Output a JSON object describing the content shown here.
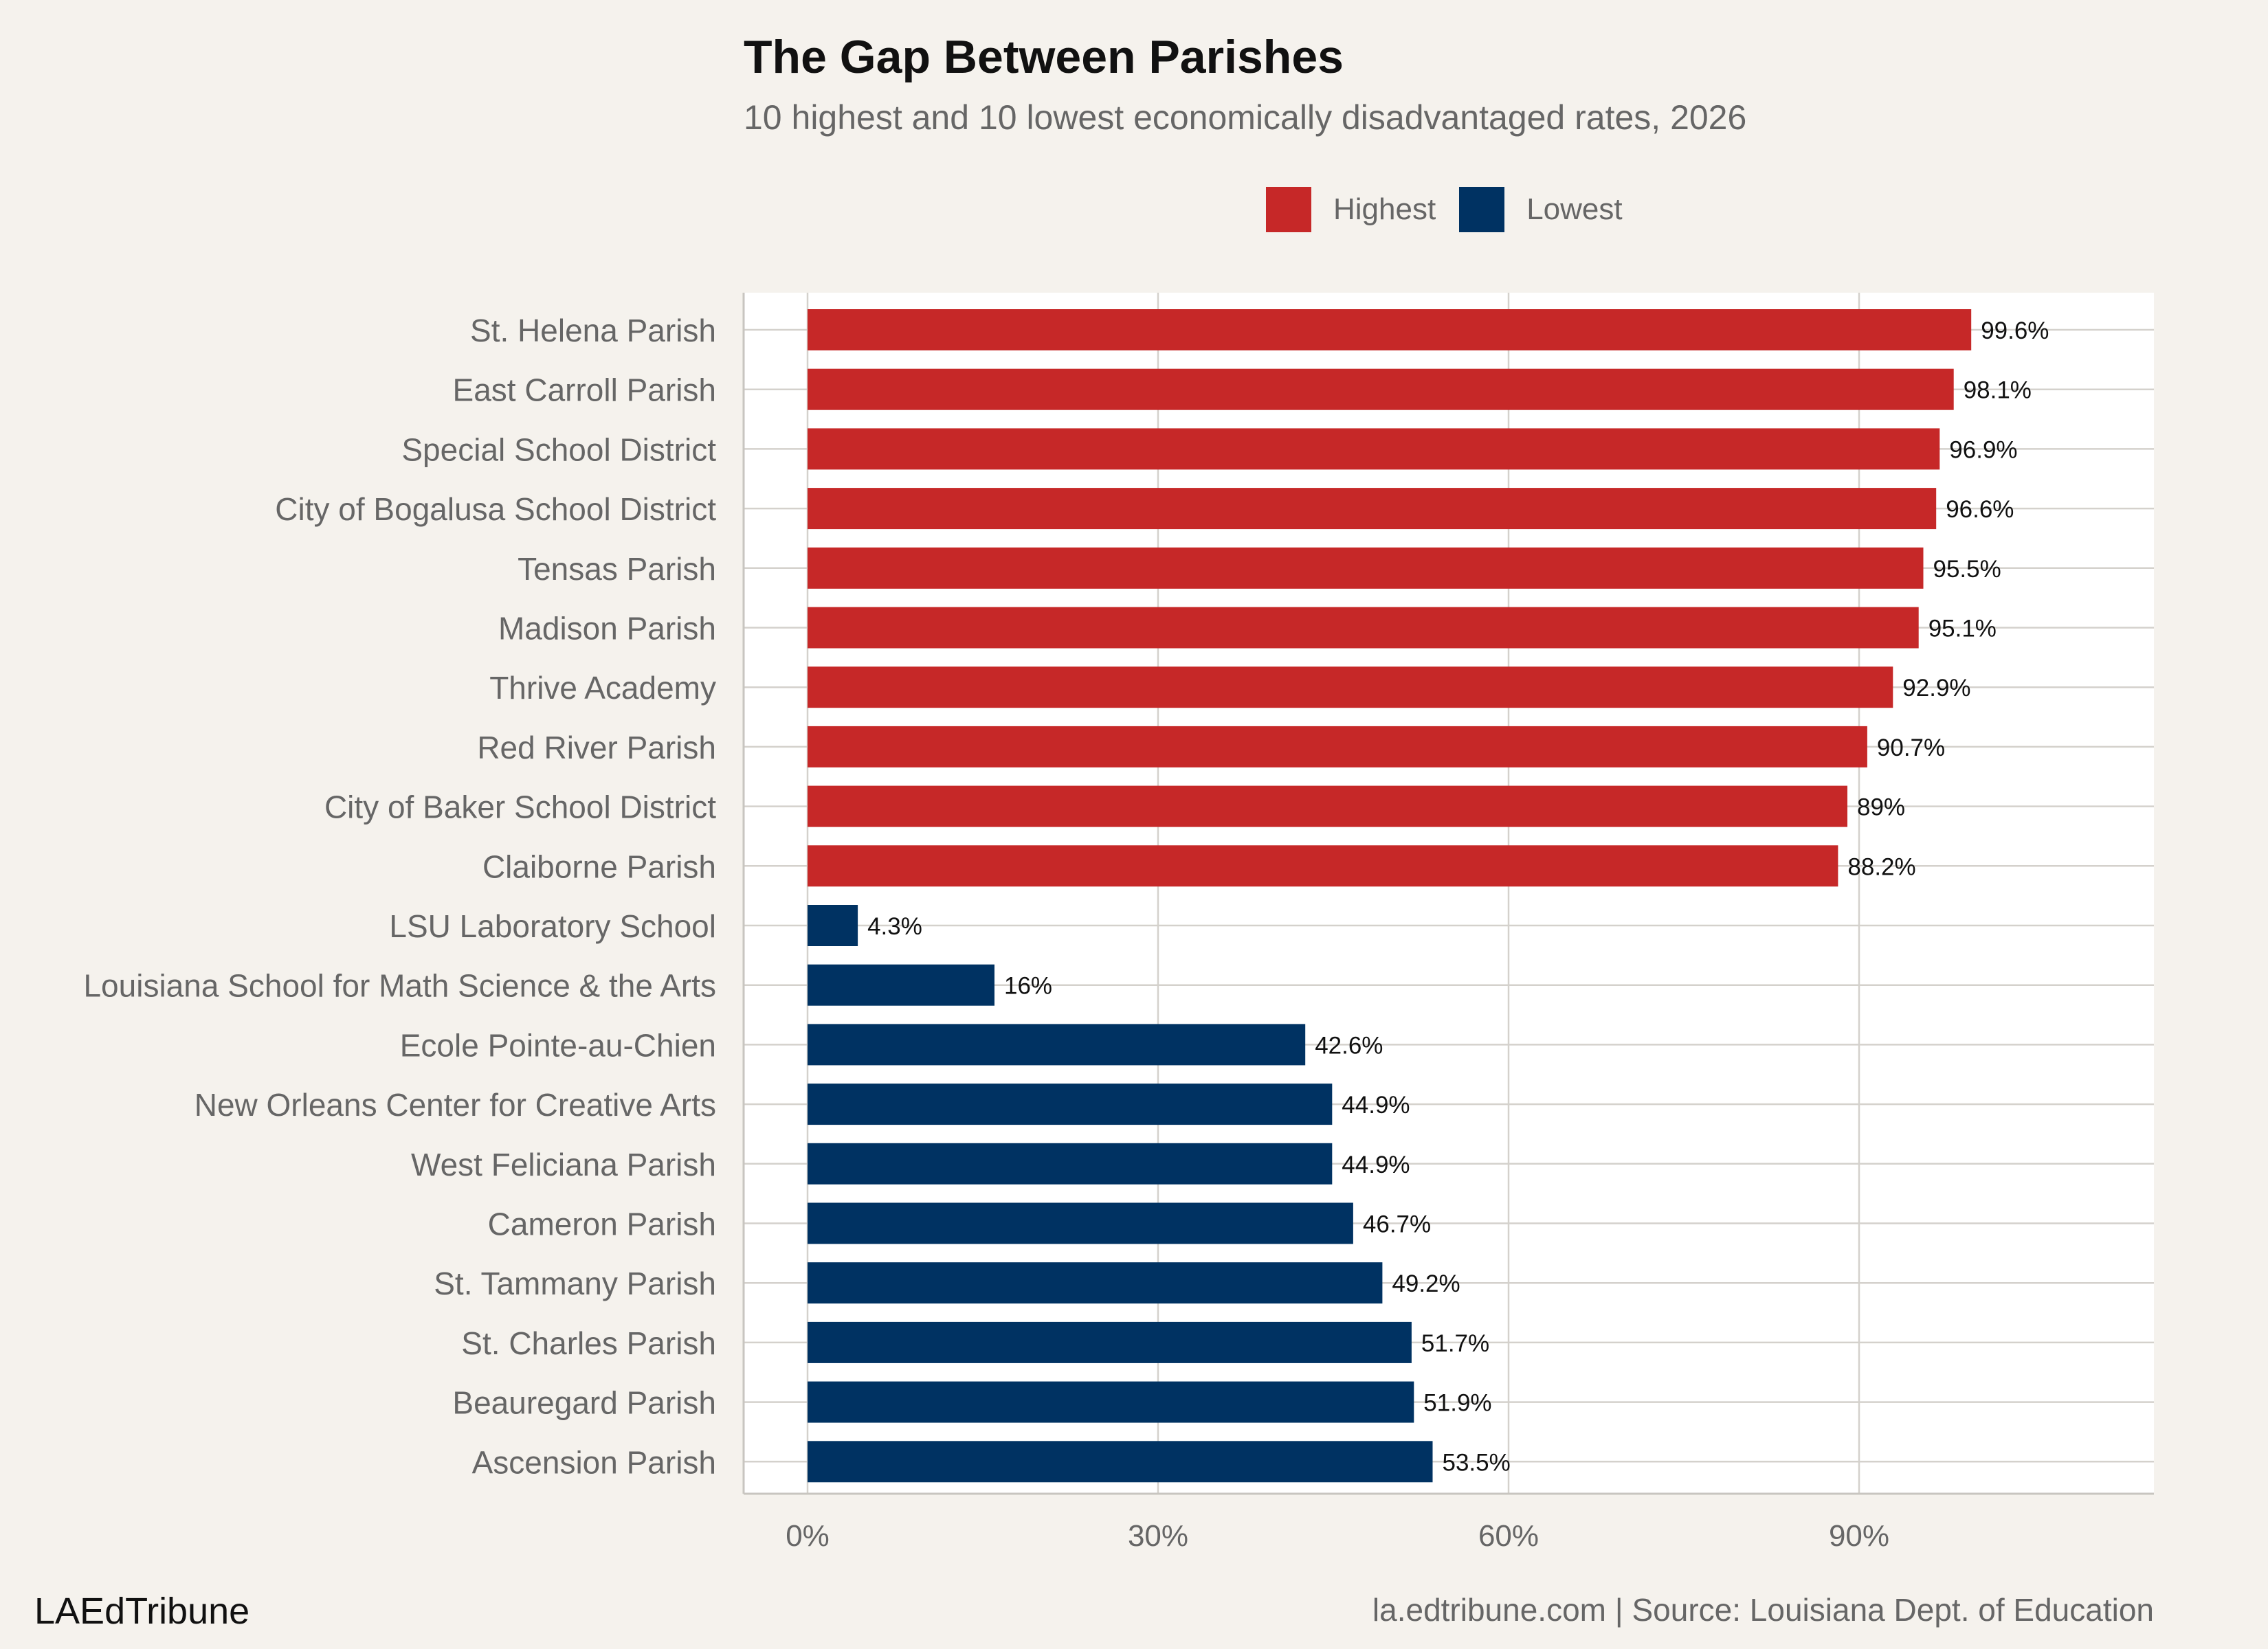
{
  "header": {
    "title": "The Gap Between Parishes",
    "subtitle": "10 highest and 10 lowest economically disadvantaged rates, 2026"
  },
  "footer": {
    "brand": "LAEdTribune",
    "source": "la.edtribune.com | Source: Louisiana Dept. of Education"
  },
  "colors": {
    "highest": "#c62828",
    "lowest": "#003262",
    "background": "#f5f2ed",
    "panel": "#ffffff",
    "grid": "#d4d1cc"
  },
  "chart_data": {
    "type": "bar",
    "orientation": "horizontal",
    "title": "The Gap Between Parishes",
    "subtitle": "10 highest and 10 lowest economically disadvantaged rates, 2026",
    "xlim": [
      0,
      115
    ],
    "x_ticks": [
      0,
      30,
      60,
      90
    ],
    "x_tick_labels": [
      "0%",
      "30%",
      "60%",
      "90%"
    ],
    "grid": true,
    "legend": {
      "placement": "top",
      "entries": [
        {
          "name": "Highest",
          "color": "#c62828"
        },
        {
          "name": "Lowest",
          "color": "#003262"
        }
      ]
    },
    "bars": [
      {
        "category": "St. Helena Parish",
        "value": 99.6,
        "label": "99.6%",
        "group": "Highest"
      },
      {
        "category": "East Carroll Parish",
        "value": 98.1,
        "label": "98.1%",
        "group": "Highest"
      },
      {
        "category": "Special School District",
        "value": 96.9,
        "label": "96.9%",
        "group": "Highest"
      },
      {
        "category": "City of Bogalusa School District",
        "value": 96.6,
        "label": "96.6%",
        "group": "Highest"
      },
      {
        "category": "Tensas Parish",
        "value": 95.5,
        "label": "95.5%",
        "group": "Highest"
      },
      {
        "category": "Madison Parish",
        "value": 95.1,
        "label": "95.1%",
        "group": "Highest"
      },
      {
        "category": "Thrive Academy",
        "value": 92.9,
        "label": "92.9%",
        "group": "Highest"
      },
      {
        "category": "Red River Parish",
        "value": 90.7,
        "label": "90.7%",
        "group": "Highest"
      },
      {
        "category": "City of Baker School District",
        "value": 89,
        "label": "89%",
        "group": "Highest"
      },
      {
        "category": "Claiborne Parish",
        "value": 88.2,
        "label": "88.2%",
        "group": "Highest"
      },
      {
        "category": "LSU Laboratory School",
        "value": 4.3,
        "label": "4.3%",
        "group": "Lowest"
      },
      {
        "category": "Louisiana School for Math Science & the Arts",
        "value": 16,
        "label": "16%",
        "group": "Lowest"
      },
      {
        "category": "Ecole Pointe-au-Chien",
        "value": 42.6,
        "label": "42.6%",
        "group": "Lowest"
      },
      {
        "category": "New Orleans Center for Creative Arts",
        "value": 44.9,
        "label": "44.9%",
        "group": "Lowest"
      },
      {
        "category": "West Feliciana Parish",
        "value": 44.9,
        "label": "44.9%",
        "group": "Lowest"
      },
      {
        "category": "Cameron Parish",
        "value": 46.7,
        "label": "46.7%",
        "group": "Lowest"
      },
      {
        "category": "St. Tammany Parish",
        "value": 49.2,
        "label": "49.2%",
        "group": "Lowest"
      },
      {
        "category": "St. Charles Parish",
        "value": 51.7,
        "label": "51.7%",
        "group": "Lowest"
      },
      {
        "category": "Beauregard Parish",
        "value": 51.9,
        "label": "51.9%",
        "group": "Lowest"
      },
      {
        "category": "Ascension Parish",
        "value": 53.5,
        "label": "53.5%",
        "group": "Lowest"
      }
    ]
  }
}
